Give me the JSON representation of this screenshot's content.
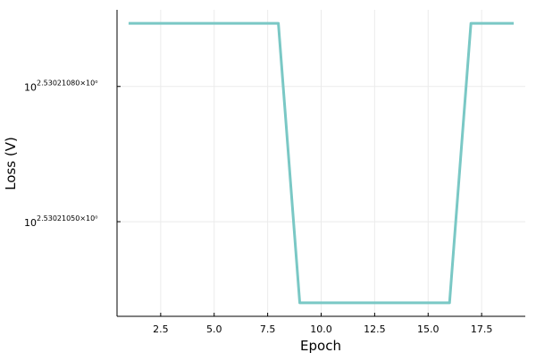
{
  "chart_data": {
    "type": "line",
    "title": "",
    "xlabel": "Epoch",
    "ylabel": "Loss (V)",
    "xlim": [
      0.46,
      19.54
    ],
    "ylim": [
      2.53021029,
      2.53021097
    ],
    "y_scale": "log10",
    "grid": true,
    "legend": "none",
    "x_ticks": [
      2.5,
      5.0,
      7.5,
      10.0,
      12.5,
      15.0,
      17.5
    ],
    "x_tick_labels": [
      "2.5",
      "5.0",
      "7.5",
      "10.0",
      "12.5",
      "15.0",
      "17.5"
    ],
    "y_ticks": [
      {
        "value": 2.5302108,
        "base": "10",
        "exponent": "2.53021080×10⁰"
      },
      {
        "value": 2.5302105,
        "base": "10",
        "exponent": "2.53021050×10⁰"
      }
    ],
    "series": [
      {
        "color": "#7ac8c5",
        "x": [
          1,
          2,
          3,
          4,
          5,
          6,
          7,
          8,
          9,
          10,
          11,
          12,
          13,
          14,
          15,
          16,
          17,
          18,
          19
        ],
        "y": [
          2.53021094,
          2.53021094,
          2.53021094,
          2.53021094,
          2.53021094,
          2.53021094,
          2.53021094,
          2.53021094,
          2.53021032,
          2.53021032,
          2.53021032,
          2.53021032,
          2.53021032,
          2.53021032,
          2.53021032,
          2.53021032,
          2.53021094,
          2.53021094,
          2.53021094
        ]
      }
    ],
    "colors": {
      "axis": "#000000",
      "grid": "#ebebeb"
    }
  }
}
